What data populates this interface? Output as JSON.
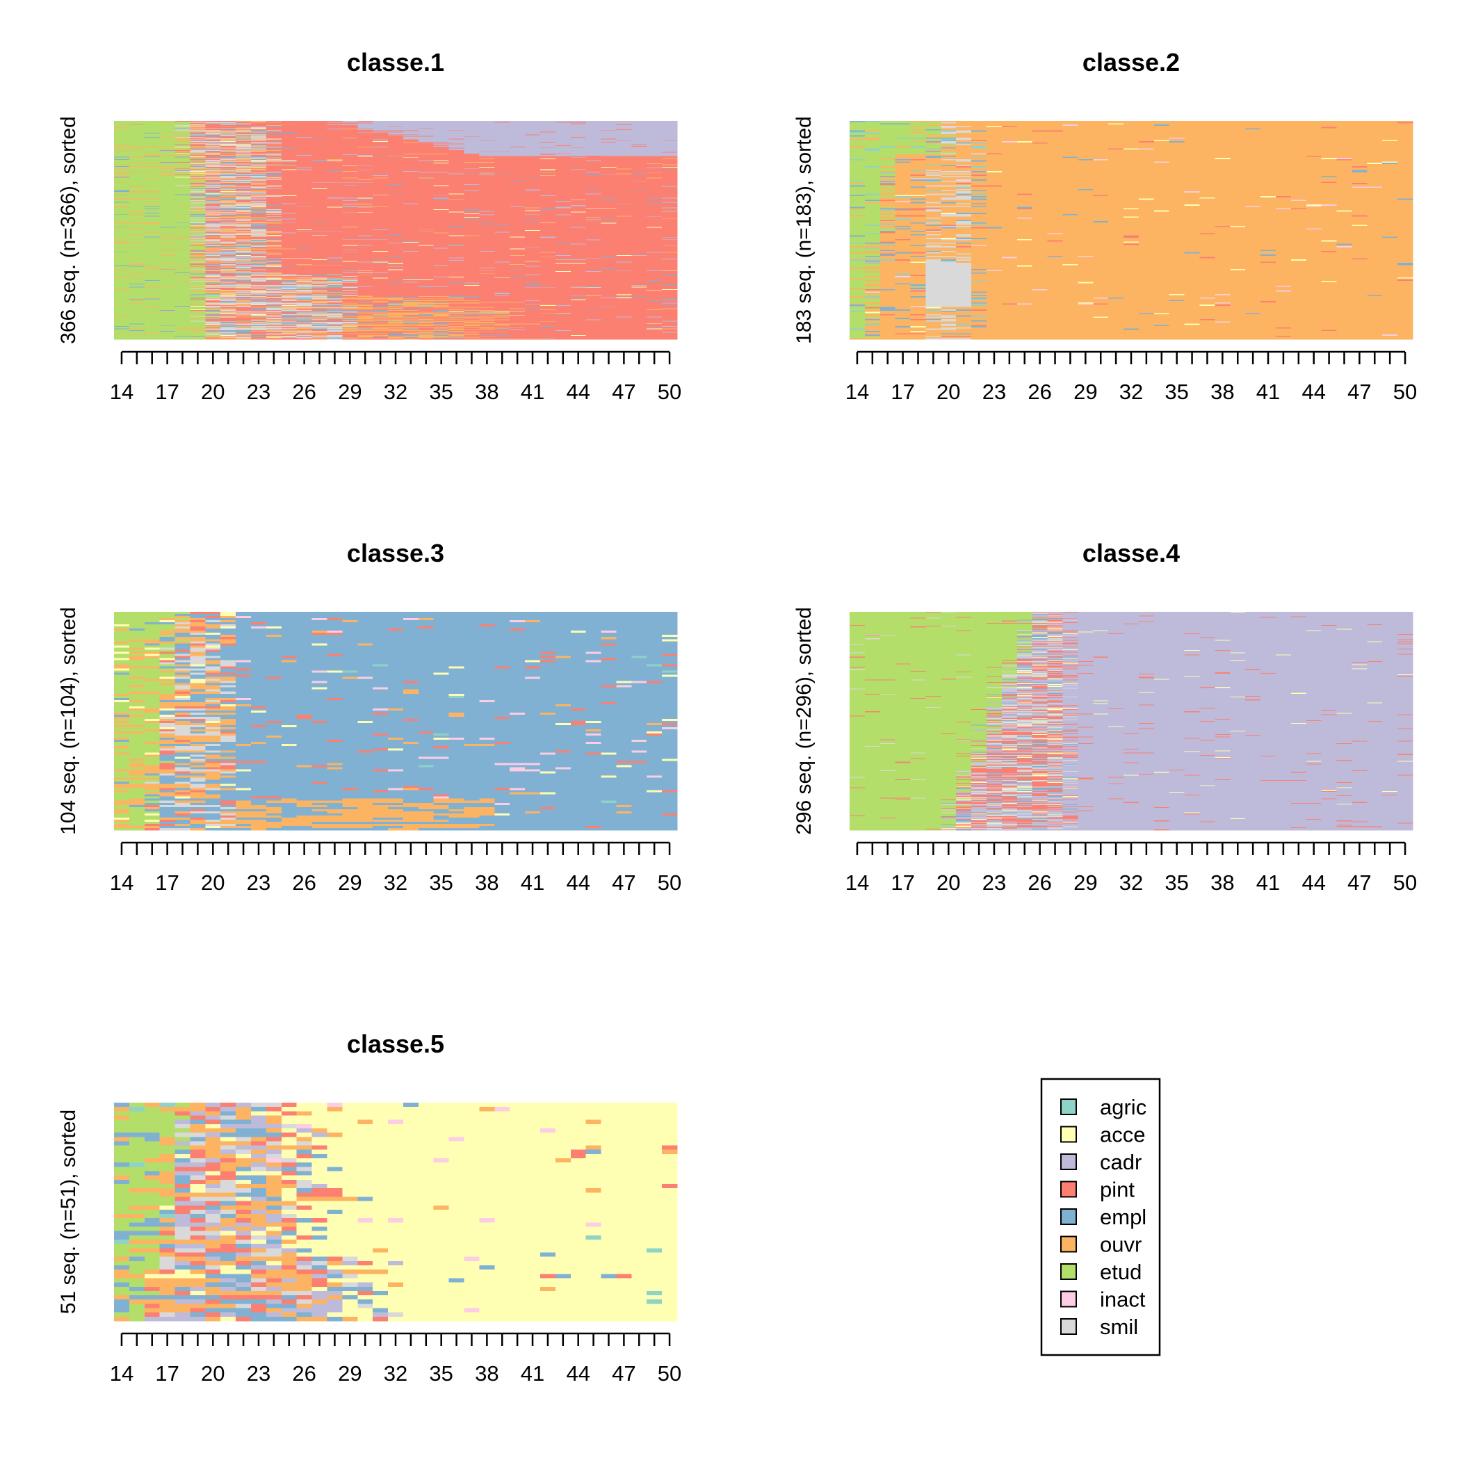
{
  "chart_data": [
    {
      "type": "heatmap",
      "subtype": "sequence-index-plot",
      "title": "classe.1",
      "ylabel": "366 seq. (n=366), sorted",
      "n": 366,
      "x_range": [
        14,
        50
      ],
      "tick_labels": [
        "14",
        "17",
        "20",
        "23",
        "26",
        "29",
        "32",
        "35",
        "38",
        "41",
        "44",
        "47",
        "50"
      ],
      "dominant_state": "pint",
      "state_shares_by_age": [
        {
          "age_from": 14,
          "age_to": 18,
          "main": "etud"
        },
        {
          "age_from": 18,
          "age_to": 23,
          "main": "mixed: smil/ouvr/empl/pint"
        },
        {
          "age_from": 23,
          "age_to": 41,
          "main": "pint"
        },
        {
          "age_from": 41,
          "age_to": 50,
          "main": "pint/cadr"
        }
      ]
    },
    {
      "type": "heatmap",
      "subtype": "sequence-index-plot",
      "title": "classe.2",
      "ylabel": "183 seq. (n=183), sorted",
      "n": 183,
      "x_range": [
        14,
        50
      ],
      "tick_labels": [
        "14",
        "17",
        "20",
        "23",
        "26",
        "29",
        "32",
        "35",
        "38",
        "41",
        "44",
        "47",
        "50"
      ],
      "dominant_state": "ouvr",
      "state_shares_by_age": [
        {
          "age_from": 14,
          "age_to": 17,
          "main": "etud"
        },
        {
          "age_from": 17,
          "age_to": 23,
          "main": "ouvr/smil"
        },
        {
          "age_from": 23,
          "age_to": 50,
          "main": "ouvr"
        }
      ]
    },
    {
      "type": "heatmap",
      "subtype": "sequence-index-plot",
      "title": "classe.3",
      "ylabel": "104 seq. (n=104), sorted",
      "n": 104,
      "x_range": [
        14,
        50
      ],
      "tick_labels": [
        "14",
        "17",
        "20",
        "23",
        "26",
        "29",
        "32",
        "35",
        "38",
        "41",
        "44",
        "47",
        "50"
      ],
      "dominant_state": "empl",
      "state_shares_by_age": [
        {
          "age_from": 14,
          "age_to": 18,
          "main": "etud/ouvr"
        },
        {
          "age_from": 18,
          "age_to": 23,
          "main": "mixed: smil/empl/ouvr"
        },
        {
          "age_from": 23,
          "age_to": 50,
          "main": "empl"
        }
      ]
    },
    {
      "type": "heatmap",
      "subtype": "sequence-index-plot",
      "title": "classe.4",
      "ylabel": "296 seq. (n=296), sorted",
      "n": 296,
      "x_range": [
        14,
        50
      ],
      "tick_labels": [
        "14",
        "17",
        "20",
        "23",
        "26",
        "29",
        "32",
        "35",
        "38",
        "41",
        "44",
        "47",
        "50"
      ],
      "dominant_state": "cadr",
      "state_shares_by_age": [
        {
          "age_from": 14,
          "age_to": 23,
          "main": "etud"
        },
        {
          "age_from": 23,
          "age_to": 30,
          "main": "mixed: pint/smil/cadr"
        },
        {
          "age_from": 30,
          "age_to": 50,
          "main": "cadr"
        }
      ]
    },
    {
      "type": "heatmap",
      "subtype": "sequence-index-plot",
      "title": "classe.5",
      "ylabel": "51 seq. (n=51), sorted",
      "n": 51,
      "x_range": [
        14,
        50
      ],
      "tick_labels": [
        "14",
        "17",
        "20",
        "23",
        "26",
        "29",
        "32",
        "35",
        "38",
        "41",
        "44",
        "47",
        "50"
      ],
      "dominant_state": "acce",
      "state_shares_by_age": [
        {
          "age_from": 14,
          "age_to": 18,
          "main": "etud/ouvr"
        },
        {
          "age_from": 18,
          "age_to": 29,
          "main": "mixed: ouvr/empl/pint/cadr/smil"
        },
        {
          "age_from": 29,
          "age_to": 50,
          "main": "acce"
        }
      ]
    }
  ],
  "legend": {
    "title": "",
    "placement": "bottom-right",
    "entries": [
      {
        "state": "agric",
        "label": "agric",
        "color": "#8DD3C7"
      },
      {
        "state": "acce",
        "label": "acce",
        "color": "#FFFFB3"
      },
      {
        "state": "cadr",
        "label": "cadr",
        "color": "#BEBADA"
      },
      {
        "state": "pint",
        "label": "pint",
        "color": "#FB8072"
      },
      {
        "state": "empl",
        "label": "empl",
        "color": "#80B1D3"
      },
      {
        "state": "ouvr",
        "label": "ouvr",
        "color": "#FDB462"
      },
      {
        "state": "etud",
        "label": "etud",
        "color": "#B3DE69"
      },
      {
        "state": "inact",
        "label": "inact",
        "color": "#FCCDE5"
      },
      {
        "state": "smil",
        "label": "smil",
        "color": "#D9D9D9"
      }
    ]
  }
}
